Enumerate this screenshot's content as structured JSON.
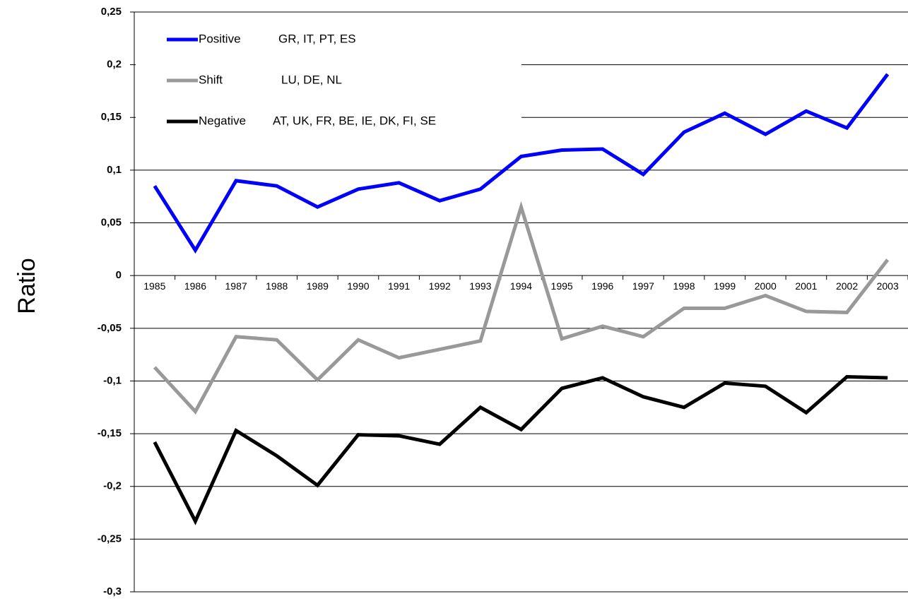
{
  "chart_data": {
    "type": "line",
    "y_axis_label": "Ratio",
    "categories": [
      "1985",
      "1986",
      "1987",
      "1988",
      "1989",
      "1990",
      "1991",
      "1992",
      "1993",
      "1994",
      "1995",
      "1996",
      "1997",
      "1998",
      "1999",
      "2000",
      "2001",
      "2002",
      "2003"
    ],
    "series": [
      {
        "name": "Positive",
        "countries": "GR, IT, PT, ES",
        "color": "#0000ff",
        "values": [
          0.085,
          0.024,
          0.09,
          0.085,
          0.065,
          0.082,
          0.088,
          0.071,
          0.082,
          0.113,
          0.119,
          0.12,
          0.096,
          0.136,
          0.154,
          0.134,
          0.156,
          0.14,
          0.191
        ]
      },
      {
        "name": "Shift",
        "countries": "LU, DE, NL",
        "color": "#999999",
        "values": [
          -0.087,
          -0.129,
          -0.058,
          -0.061,
          -0.099,
          -0.061,
          -0.078,
          -0.07,
          -0.062,
          0.065,
          -0.06,
          -0.048,
          -0.058,
          -0.031,
          -0.031,
          -0.019,
          -0.034,
          -0.035,
          0.015
        ]
      },
      {
        "name": "Negative",
        "countries": "AT, UK, FR, BE, IE, DK, FI, SE",
        "color": "#000000",
        "values": [
          -0.158,
          -0.233,
          -0.147,
          -0.171,
          -0.199,
          -0.151,
          -0.152,
          -0.16,
          -0.125,
          -0.146,
          -0.107,
          -0.097,
          -0.115,
          -0.125,
          -0.102,
          -0.105,
          -0.13,
          -0.096,
          -0.097
        ]
      }
    ],
    "ylim": [
      -0.3,
      0.25
    ],
    "yticks": [
      {
        "value": -0.3,
        "label": "-0,3"
      },
      {
        "value": -0.25,
        "label": "-0,25"
      },
      {
        "value": -0.2,
        "label": "-0,2"
      },
      {
        "value": -0.15,
        "label": "-0,15"
      },
      {
        "value": -0.1,
        "label": "-0,1"
      },
      {
        "value": -0.05,
        "label": "-0,05"
      },
      0,
      {
        "value": 0.05,
        "label": "0,05"
      },
      {
        "value": 0.1,
        "label": "0,1"
      },
      {
        "value": 0.15,
        "label": "0,15"
      },
      {
        "value": 0.2,
        "label": "0,2"
      },
      {
        "value": 0.25,
        "label": "0,25"
      }
    ],
    "grid": true,
    "legend": "upper left"
  }
}
